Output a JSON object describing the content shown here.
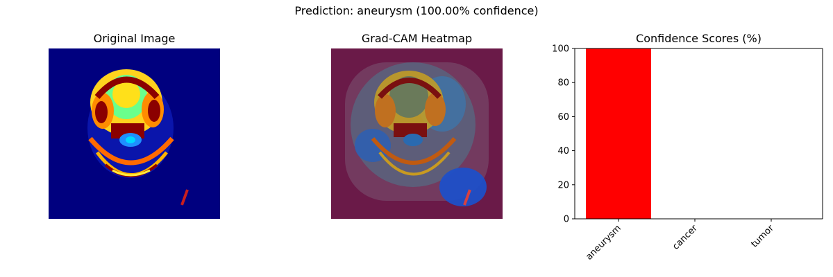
{
  "suptitle": "Prediction: aneurysm (100.00% confidence)",
  "panels": {
    "original_title": "Original Image",
    "gradcam_title": "Grad-CAM Heatmap"
  },
  "colors": {
    "bar": "#ff0000",
    "image_bg": "#00007f",
    "heatmap_bg": "#6a1a48"
  },
  "chart_data": {
    "type": "bar",
    "title": "Confidence Scores (%)",
    "categories": [
      "aneurysm",
      "cancer",
      "tumor"
    ],
    "values": [
      100.0,
      0.0,
      0.0
    ],
    "ylim": [
      0,
      100
    ],
    "yticks": [
      "0",
      "20",
      "40",
      "60",
      "80",
      "100"
    ],
    "xlabel": "",
    "ylabel": "",
    "grid": false
  }
}
